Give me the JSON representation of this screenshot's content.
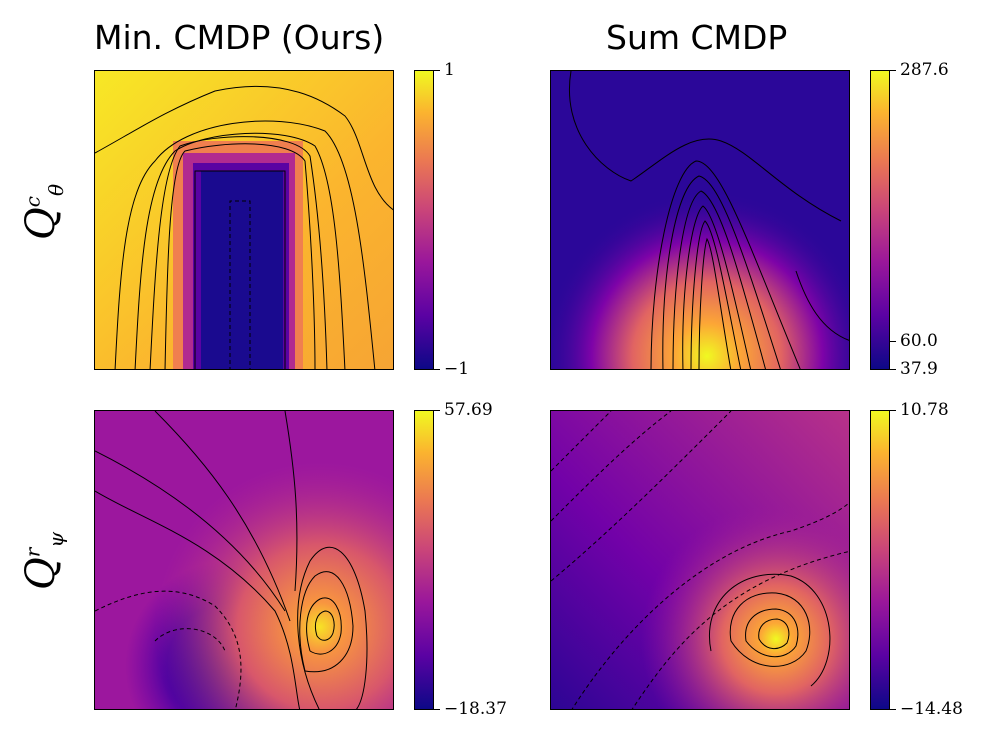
{
  "columns": {
    "left_title": "Min. CMDP (Ours)",
    "right_title": "Sum CMDP"
  },
  "rows": {
    "top_label": {
      "base": "Q",
      "sup": "c",
      "sub": "θ"
    },
    "bottom_label": {
      "base": "Q",
      "sup": "r",
      "sub": "ψ"
    }
  },
  "chart_data": [
    {
      "type": "heatmap",
      "title": "Min. CMDP (Ours)",
      "ylabel": "Q^c_θ",
      "colormap": "plasma",
      "vmin": -1,
      "vmax": 1,
      "colorbar_ticks": [
        "1",
        "−1"
      ],
      "description_values": {
        "background": 1,
        "rectangle_core": -1
      }
    },
    {
      "type": "heatmap",
      "title": "Sum CMDP",
      "ylabel": "Q^c_θ",
      "colormap": "plasma",
      "vmin": 37.9,
      "vmax": 287.6,
      "colorbar_ticks": [
        "287.6",
        "60.0",
        "37.9"
      ],
      "description_values": {
        "background": 60.0,
        "peak": 287.6
      }
    },
    {
      "type": "heatmap",
      "title": "Min. CMDP (Ours)",
      "ylabel": "Q^r_ψ",
      "colormap": "plasma",
      "vmin": -18.37,
      "vmax": 57.69,
      "colorbar_ticks": [
        "57.69",
        "−18.37"
      ]
    },
    {
      "type": "heatmap",
      "title": "Sum CMDP",
      "ylabel": "Q^r_ψ",
      "colormap": "plasma",
      "vmin": -14.48,
      "vmax": 10.78,
      "colorbar_ticks": [
        "10.78",
        "−14.48"
      ]
    }
  ],
  "colors": {
    "plasma_low": "#0d0887",
    "plasma_mid": "#cb4678",
    "plasma_high": "#f0f921"
  }
}
